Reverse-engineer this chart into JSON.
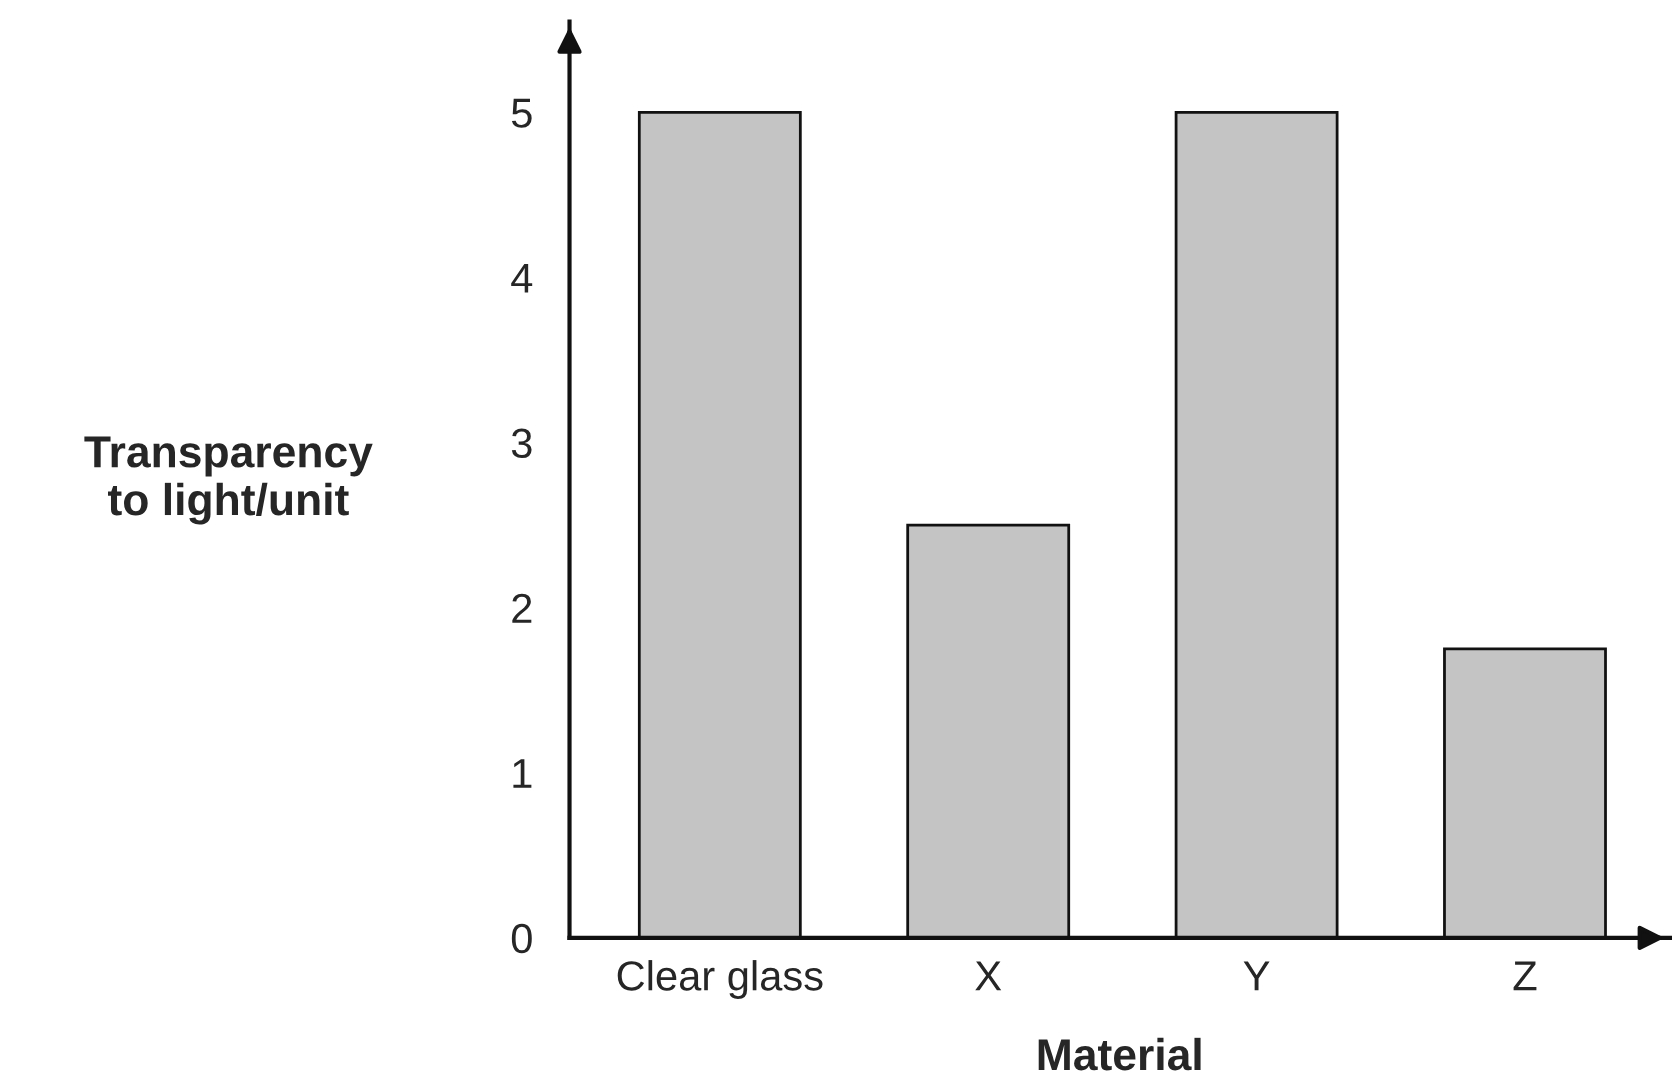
{
  "chart_data": {
    "type": "bar",
    "xlabel": "Material",
    "ylabel": "Transparency\nto light/unit",
    "categories": [
      "Clear glass",
      "X",
      "Y",
      "Z"
    ],
    "values": [
      5,
      2.5,
      5,
      1.75
    ],
    "color": "#c4c4c4",
    "ylim": [
      0,
      5.55
    ],
    "yticks": [
      0,
      1,
      2,
      3,
      4,
      5
    ],
    "grid": false
  }
}
